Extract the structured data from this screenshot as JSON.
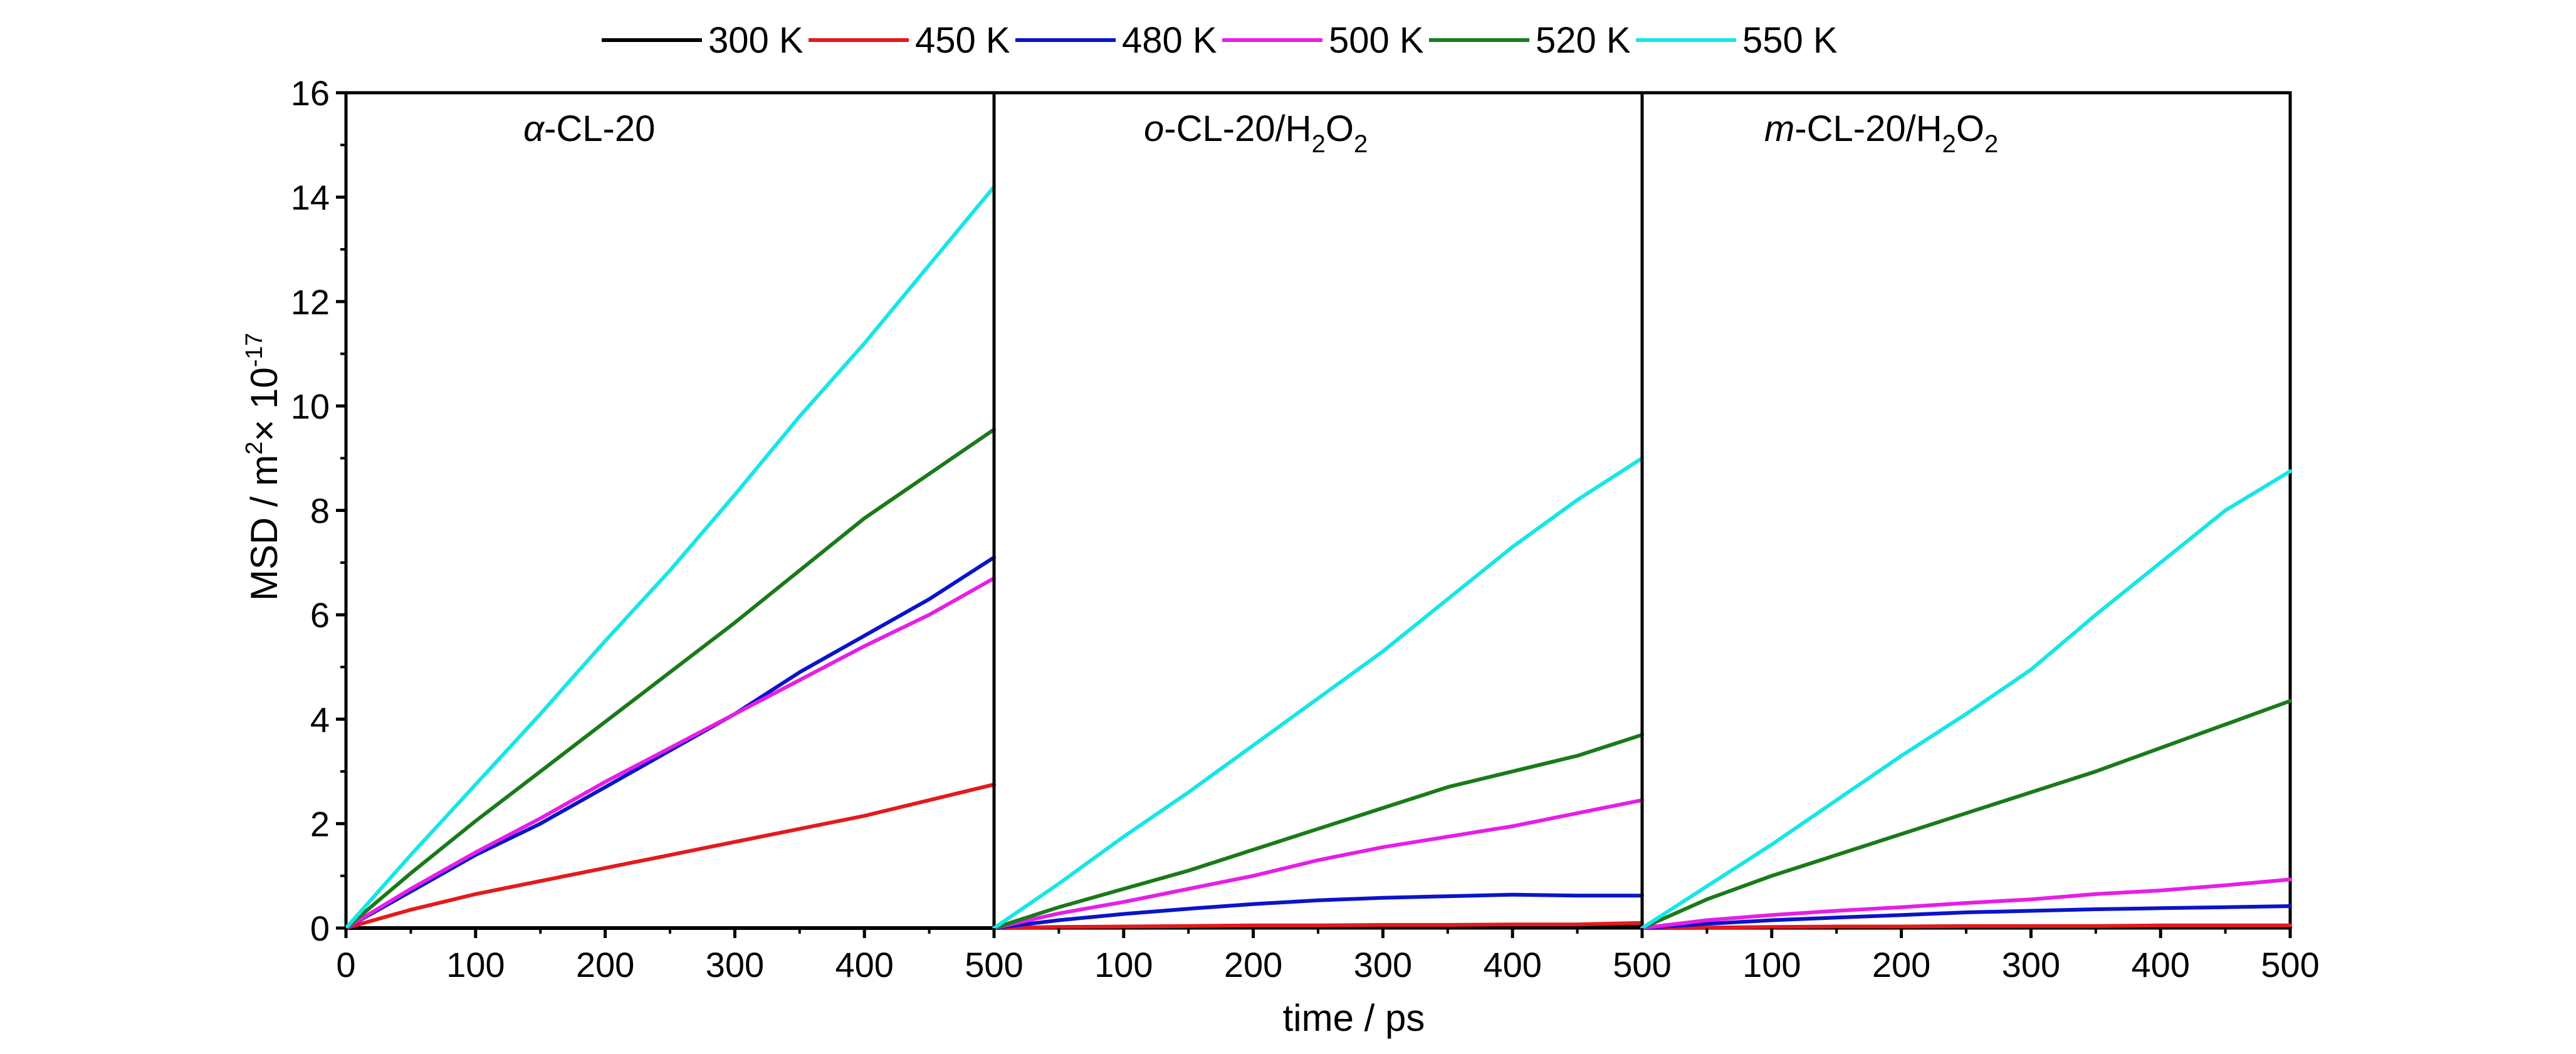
{
  "chart_data": {
    "type": "line",
    "xlabel": "time / ps",
    "ylabel": "MSD / m",
    "ylabel_sup": "2",
    "ylabel_tail": "× 10",
    "ylabel_exp": "-17",
    "ylim": [
      0,
      16
    ],
    "yticks": [
      "0",
      "2",
      "4",
      "6",
      "8",
      "10",
      "12",
      "14",
      "16"
    ],
    "xlim": [
      0,
      500
    ],
    "xticks": [
      "0",
      "100",
      "200",
      "300",
      "400",
      "500"
    ],
    "grid": false,
    "legend_position": "top-center",
    "legend": [
      {
        "label": "300 K",
        "color": "#000000"
      },
      {
        "label": "450 K",
        "color": "#e41a1c"
      },
      {
        "label": "480 K",
        "color": "#0a14c8"
      },
      {
        "label": "500 K",
        "color": "#e61ee6"
      },
      {
        "label": "520 K",
        "color": "#1a7a1a"
      },
      {
        "label": "550 K",
        "color": "#16e6e6"
      }
    ],
    "x": [
      0,
      50,
      100,
      150,
      200,
      250,
      300,
      350,
      400,
      450,
      500
    ],
    "panels": [
      {
        "title_italic": "α",
        "title_rest": "-CL-20",
        "series": [
          {
            "name": "300 K",
            "values": [
              0,
              0,
              0,
              0,
              0,
              0,
              0,
              0,
              0,
              0,
              0
            ]
          },
          {
            "name": "450 K",
            "values": [
              0,
              0.35,
              0.65,
              0.9,
              1.15,
              1.4,
              1.65,
              1.9,
              2.15,
              2.45,
              2.75
            ]
          },
          {
            "name": "480 K",
            "values": [
              0,
              0.7,
              1.4,
              2.0,
              2.7,
              3.4,
              4.1,
              4.9,
              5.6,
              6.3,
              7.1
            ]
          },
          {
            "name": "500 K",
            "values": [
              0,
              0.75,
              1.45,
              2.1,
              2.8,
              3.45,
              4.1,
              4.75,
              5.4,
              6.0,
              6.7
            ]
          },
          {
            "name": "520 K",
            "values": [
              0,
              1.05,
              2.05,
              3.0,
              3.95,
              4.9,
              5.85,
              6.85,
              7.85,
              8.7,
              9.55
            ]
          },
          {
            "name": "550 K",
            "values": [
              0,
              1.4,
              2.75,
              4.1,
              5.5,
              6.85,
              8.3,
              9.8,
              11.2,
              12.7,
              14.2
            ]
          }
        ]
      },
      {
        "title_italic": "o",
        "title_rest": "-CL-20/H",
        "title_sub1": "2",
        "title_mid": "O",
        "title_sub2": "2",
        "series": [
          {
            "name": "300 K",
            "values": [
              0,
              0.01,
              0.02,
              0.02,
              0.03,
              0.03,
              0.03,
              0.03,
              0.03,
              0.03,
              0.03
            ]
          },
          {
            "name": "450 K",
            "values": [
              0,
              0.02,
              0.03,
              0.04,
              0.05,
              0.05,
              0.06,
              0.06,
              0.07,
              0.07,
              0.1
            ]
          },
          {
            "name": "480 K",
            "values": [
              0,
              0.15,
              0.27,
              0.37,
              0.46,
              0.53,
              0.58,
              0.61,
              0.64,
              0.62,
              0.62
            ]
          },
          {
            "name": "500 K",
            "values": [
              0,
              0.28,
              0.5,
              0.75,
              1.0,
              1.3,
              1.55,
              1.75,
              1.95,
              2.2,
              2.45
            ]
          },
          {
            "name": "520 K",
            "values": [
              0,
              0.4,
              0.75,
              1.1,
              1.5,
              1.9,
              2.3,
              2.7,
              3.0,
              3.3,
              3.7
            ]
          },
          {
            "name": "550 K",
            "values": [
              0,
              0.85,
              1.75,
              2.6,
              3.5,
              4.4,
              5.3,
              6.3,
              7.3,
              8.2,
              9.0
            ]
          }
        ]
      },
      {
        "title_italic": "m",
        "title_rest": "-CL-20/H",
        "title_sub1": "2",
        "title_mid": "O",
        "title_sub2": "2",
        "series": [
          {
            "name": "300 K",
            "values": [
              0,
              0.005,
              0.01,
              0.01,
              0.01,
              0.01,
              0.01,
              0.01,
              0.01,
              0.01,
              0.01
            ]
          },
          {
            "name": "450 K",
            "values": [
              0,
              0.01,
              0.02,
              0.03,
              0.03,
              0.04,
              0.04,
              0.04,
              0.05,
              0.05,
              0.05
            ]
          },
          {
            "name": "480 K",
            "values": [
              0,
              0.08,
              0.15,
              0.2,
              0.25,
              0.3,
              0.33,
              0.36,
              0.38,
              0.4,
              0.42
            ]
          },
          {
            "name": "500 K",
            "values": [
              0,
              0.15,
              0.25,
              0.33,
              0.4,
              0.48,
              0.55,
              0.65,
              0.72,
              0.82,
              0.93
            ]
          },
          {
            "name": "520 K",
            "values": [
              0,
              0.55,
              1.0,
              1.4,
              1.8,
              2.2,
              2.6,
              3.0,
              3.45,
              3.9,
              4.35
            ]
          },
          {
            "name": "550 K",
            "values": [
              0,
              0.8,
              1.6,
              2.45,
              3.3,
              4.1,
              4.95,
              6.0,
              7.0,
              8.0,
              8.75
            ]
          }
        ]
      }
    ]
  }
}
